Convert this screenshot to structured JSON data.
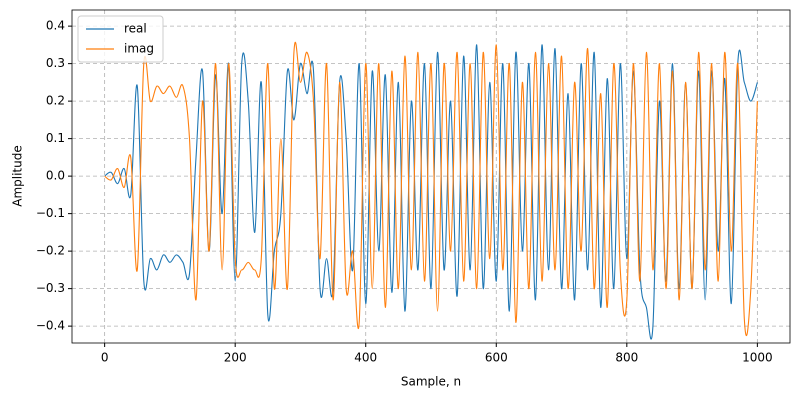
{
  "chart_data": {
    "type": "line",
    "x_label": "Sample, n",
    "y_label": "Amplitude",
    "x": [
      0,
      10,
      20,
      30,
      40,
      50,
      60,
      70,
      80,
      90,
      100,
      110,
      120,
      130,
      140,
      150,
      160,
      170,
      180,
      190,
      200,
      210,
      220,
      230,
      240,
      250,
      260,
      270,
      280,
      290,
      300,
      310,
      320,
      330,
      340,
      350,
      360,
      370,
      380,
      390,
      400,
      410,
      420,
      430,
      440,
      450,
      460,
      470,
      480,
      490,
      500,
      510,
      520,
      530,
      540,
      550,
      560,
      570,
      580,
      590,
      600,
      610,
      620,
      630,
      640,
      650,
      660,
      670,
      680,
      690,
      700,
      710,
      720,
      730,
      740,
      750,
      760,
      770,
      780,
      790,
      800,
      810,
      820,
      830,
      840,
      850,
      860,
      870,
      880,
      890,
      900,
      910,
      920,
      930,
      940,
      950,
      960,
      970,
      980,
      990,
      1000
    ],
    "series": [
      {
        "name": "real",
        "color": "#1f77b4",
        "values": [
          0,
          0.01,
          -0.02,
          0.02,
          -0.05,
          0.24,
          -0.28,
          -0.22,
          -0.25,
          -0.21,
          -0.23,
          -0.21,
          -0.23,
          -0.26,
          0.05,
          0.28,
          -0.2,
          0.27,
          -0.1,
          0.3,
          -0.28,
          0.3,
          0.2,
          -0.15,
          0.25,
          -0.37,
          -0.2,
          -0.1,
          0.28,
          0.15,
          0.3,
          0.22,
          0.28,
          -0.3,
          -0.22,
          -0.3,
          0.25,
          0.1,
          -0.25,
          0.3,
          -0.34,
          0.28,
          -0.2,
          0.27,
          -0.31,
          0.25,
          -0.36,
          0.2,
          -0.25,
          0.3,
          -0.3,
          0.33,
          -0.25,
          0.2,
          -0.32,
          0.32,
          -0.25,
          0.35,
          -0.3,
          0.25,
          -0.28,
          0.3,
          -0.36,
          0.33,
          -0.2,
          0.3,
          -0.33,
          0.35,
          -0.25,
          0.34,
          -0.3,
          0.22,
          -0.33,
          0.3,
          -0.25,
          0.33,
          -0.35,
          0.26,
          -0.3,
          0.3,
          -0.22,
          0.28,
          -0.25,
          -0.35,
          -0.4,
          0.2,
          -0.28,
          0.3,
          -0.3,
          0.25,
          -0.3,
          0.28,
          -0.33,
          0.28,
          -0.2,
          0.26,
          -0.34,
          0.3,
          0.25,
          0.2,
          0.25
        ]
      },
      {
        "name": "imag",
        "color": "#ff7f0e",
        "values": [
          0,
          -0.01,
          0.02,
          -0.03,
          0.05,
          -0.25,
          0.3,
          0.2,
          0.24,
          0.22,
          0.24,
          0.21,
          0.24,
          0.1,
          -0.33,
          0.2,
          -0.2,
          0.3,
          -0.25,
          0.3,
          -0.22,
          -0.25,
          -0.23,
          -0.25,
          -0.22,
          0.3,
          -0.3,
          0.1,
          -0.3,
          0.33,
          0.25,
          0.33,
          0.2,
          -0.22,
          0.3,
          -0.33,
          0.25,
          -0.3,
          -0.2,
          -0.39,
          0.3,
          -0.3,
          0.3,
          -0.35,
          0.28,
          -0.3,
          0.32,
          -0.25,
          0.33,
          -0.28,
          0.3,
          -0.36,
          0.3,
          -0.2,
          0.33,
          -0.28,
          0.3,
          -0.3,
          0.33,
          -0.22,
          0.35,
          -0.25,
          0.3,
          -0.39,
          0.25,
          -0.3,
          0.33,
          -0.28,
          0.3,
          -0.25,
          0.32,
          -0.3,
          0.25,
          -0.2,
          0.34,
          -0.3,
          0.22,
          -0.35,
          0.3,
          -0.25,
          -0.33,
          0.3,
          -0.28,
          0.33,
          -0.25,
          0.3,
          -0.3,
          0.28,
          -0.33,
          0.25,
          -0.3,
          0.33,
          -0.25,
          0.3,
          -0.28,
          0.33,
          -0.2,
          0.3,
          -0.38,
          -0.3,
          0.2
        ]
      }
    ],
    "xlim": [
      -50,
      1050
    ],
    "ylim": [
      -0.445,
      0.443
    ],
    "xticks": [
      0,
      200,
      400,
      600,
      800,
      1000
    ],
    "yticks": [
      {
        "value": -0.4,
        "label": "−0.4"
      },
      {
        "value": -0.3,
        "label": "−0.3"
      },
      {
        "value": -0.2,
        "label": "−0.2"
      },
      {
        "value": -0.1,
        "label": "−0.1"
      },
      {
        "value": 0,
        "label": "0.0"
      },
      0.1,
      0.2,
      0.3,
      0.4
    ],
    "grid": true,
    "legend": "upper-left"
  }
}
